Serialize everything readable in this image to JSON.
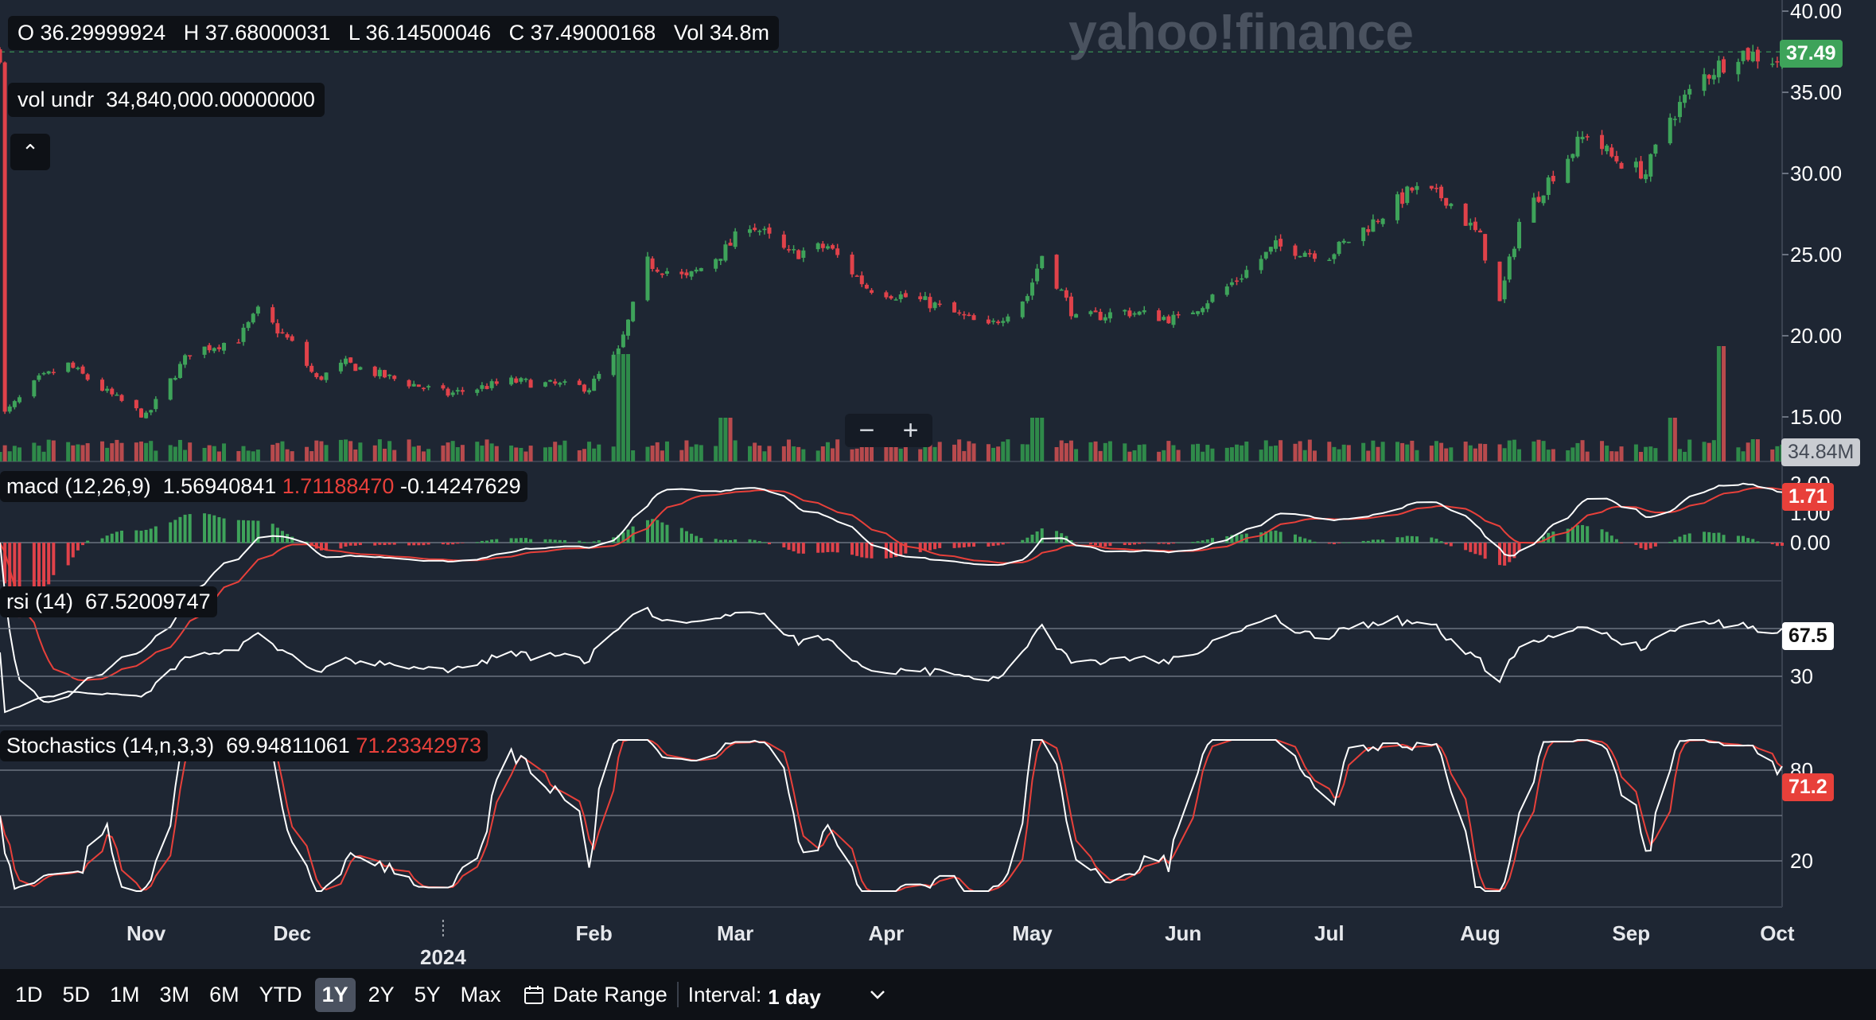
{
  "ohlc": {
    "open_label": "O",
    "open": "36.29999924",
    "high_label": "H",
    "high": "37.68000031",
    "low_label": "L",
    "low": "36.14500046",
    "close_label": "C",
    "close": "37.49000168",
    "vol_label": "Vol",
    "vol": "34.8m"
  },
  "vol_undr": {
    "label": "vol undr",
    "value": "34,840,000.00000000"
  },
  "watermark": "yahoo!finance",
  "zoom": {
    "minus": "−",
    "plus": "+"
  },
  "collapse_glyph": "⌃",
  "price_axis": {
    "ticks": [
      "40.00",
      "35.00",
      "30.00",
      "25.00",
      "20.00",
      "15.00"
    ],
    "last_price": "37.49",
    "last_volume": "34.84M"
  },
  "macd": {
    "label": "macd (12,26,9)",
    "value1": "1.56940841",
    "value2": "1.71188470",
    "value3": "-0.14247629",
    "ticks": [
      "2.00",
      "1.00",
      "0.00"
    ],
    "tag": "1.71"
  },
  "rsi": {
    "label": "rsi (14)",
    "value": "67.52009747",
    "ticks": [
      "30"
    ],
    "tag": "67.5"
  },
  "stoch": {
    "label": "Stochastics (14,n,3,3)",
    "value1": "69.94811061",
    "value2": "71.23342973",
    "ticks": [
      "80",
      "20"
    ],
    "tag": "71.2"
  },
  "x_axis": {
    "months": [
      "Nov",
      "Dec",
      "Feb",
      "Mar",
      "Apr",
      "May",
      "Jun",
      "Jul",
      "Aug",
      "Sep",
      "Oct"
    ],
    "year": "2024"
  },
  "toolbar": {
    "ranges": [
      "1D",
      "5D",
      "1M",
      "3M",
      "6M",
      "YTD",
      "1Y",
      "2Y",
      "5Y",
      "Max"
    ],
    "active_range": "1Y",
    "date_range_label": "Date Range",
    "interval_label": "Interval:",
    "interval_value": "1 day"
  },
  "colors": {
    "background": "#1e2633",
    "up": "#3ea35a",
    "down": "#e0424a",
    "up_volume": "#2f8a4a",
    "down_volume": "#b84a4d",
    "macd_line": "#ffffff",
    "signal_line": "#e8403a"
  },
  "icons": {
    "calendar": "calendar-icon",
    "chevron": "chevron-down-icon",
    "collapse": "chevron-up-icon"
  },
  "chart_data": {
    "type": "candlestick",
    "interval": "1 day",
    "x_range": [
      "2023-10-02",
      "2024-10-02"
    ],
    "y_range": [
      12,
      40
    ],
    "price_path": [
      [
        "2023-10-03",
        15.2
      ],
      [
        "2023-10-10",
        17.3
      ],
      [
        "2023-10-16",
        18.2
      ],
      [
        "2023-10-24",
        16.5
      ],
      [
        "2023-11-01",
        15.0
      ],
      [
        "2023-11-10",
        19.0
      ],
      [
        "2023-11-20",
        19.8
      ],
      [
        "2023-11-24",
        21.5
      ],
      [
        "2023-12-01",
        19.5
      ],
      [
        "2023-12-06",
        17.3
      ],
      [
        "2023-12-12",
        18.3
      ],
      [
        "2023-12-20",
        17.5
      ],
      [
        "2024-01-02",
        16.4
      ],
      [
        "2024-01-15",
        17.2
      ],
      [
        "2024-01-31",
        16.8
      ],
      [
        "2024-02-06",
        19.0
      ],
      [
        "2024-02-12",
        24.5
      ],
      [
        "2024-02-20",
        23.5
      ],
      [
        "2024-02-28",
        25.3
      ],
      [
        "2024-03-04",
        27.0
      ],
      [
        "2024-03-12",
        25.0
      ],
      [
        "2024-03-20",
        25.5
      ],
      [
        "2024-03-28",
        23.0
      ],
      [
        "2024-04-10",
        22.0
      ],
      [
        "2024-04-22",
        20.5
      ],
      [
        "2024-04-30",
        22.5
      ],
      [
        "2024-05-03",
        25.0
      ],
      [
        "2024-05-10",
        21.0
      ],
      [
        "2024-05-20",
        21.5
      ],
      [
        "2024-05-31",
        21.0
      ],
      [
        "2024-06-10",
        23.0
      ],
      [
        "2024-06-20",
        25.5
      ],
      [
        "2024-07-01",
        25.0
      ],
      [
        "2024-07-10",
        27.0
      ],
      [
        "2024-07-18",
        29.0
      ],
      [
        "2024-07-25",
        28.5
      ],
      [
        "2024-08-01",
        26.0
      ],
      [
        "2024-08-05",
        22.0
      ],
      [
        "2024-08-09",
        27.0
      ],
      [
        "2024-08-16",
        30.0
      ],
      [
        "2024-08-23",
        32.5
      ],
      [
        "2024-08-28",
        31.0
      ],
      [
        "2024-09-04",
        30.0
      ],
      [
        "2024-09-09",
        33.5
      ],
      [
        "2024-09-16",
        36.0
      ],
      [
        "2024-09-23",
        37.5
      ],
      [
        "2024-10-01",
        37.0
      ],
      [
        "2024-10-02",
        37.49
      ]
    ],
    "last_close": 37.49,
    "volume_spikes": [
      [
        "2024-02-07",
        "high"
      ],
      [
        "2024-02-28",
        "medium"
      ],
      [
        "2024-05-02",
        "medium"
      ],
      [
        "2024-09-09",
        "medium"
      ],
      [
        "2024-09-20",
        "very high"
      ]
    ],
    "last_volume_m": 34.84,
    "macd": {
      "last_macd": 1.56940841,
      "last_signal": 1.7118847,
      "last_hist": -0.14247629,
      "y_range": [
        -0.5,
        2.0
      ]
    },
    "rsi": {
      "last": 67.52009747,
      "levels": [
        70,
        30
      ]
    },
    "stochastics": {
      "last_k": 69.94811061,
      "last_d": 71.23342973,
      "levels": [
        80,
        50,
        20
      ]
    }
  }
}
